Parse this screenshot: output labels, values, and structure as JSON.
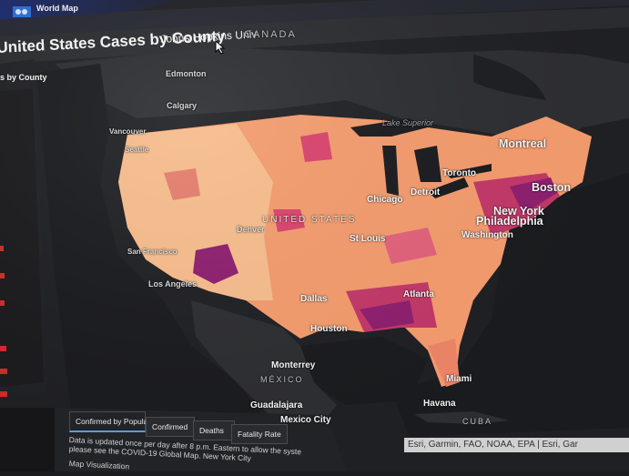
{
  "header": {
    "app_title": "World Map",
    "map_title": "United States Cases by County",
    "source": "Johns Hopkins Univ"
  },
  "side_panel": {
    "title": "s by County"
  },
  "map_labels": {
    "countries": [
      "CANADA",
      "UNITED STATES",
      "MÉXICO",
      "CUBA"
    ],
    "water": [
      "Lake Superior"
    ],
    "cities": [
      "Edmonton",
      "Calgary",
      "Vancouver",
      "Seattle",
      "Denver",
      "Los Angeles",
      "San Francisco",
      "Dallas",
      "Houston",
      "Monterrey",
      "Guadalajara",
      "Mexico City",
      "St Louis",
      "Chicago",
      "Detroit",
      "Toronto",
      "Montreal",
      "Boston",
      "New York",
      "Philadelphia",
      "Washington",
      "Atlanta",
      "Miami",
      "Havana"
    ]
  },
  "tabs": [
    {
      "label": "Confirmed by Population",
      "active": true
    },
    {
      "label": "Confirmed",
      "active": false
    },
    {
      "label": "Deaths",
      "active": false
    },
    {
      "label": "Fatality Rate",
      "active": false
    }
  ],
  "footer": {
    "line1": "Data is updated once per day after 8 p.m. Eastern to allow the syste",
    "line2": "please see the COVID-19 Global Map. New York City",
    "line3": "Map Visualization"
  },
  "attribution": "Esri, Garmin, FAO, NOAA, EPA | Esri, Gar",
  "colors": {
    "background": "#1b1c1f",
    "land": "#2c2d30",
    "low": "#f8d7a6",
    "mid": "#f39b6d",
    "high": "#d8436c",
    "very_high": "#8d1f6e",
    "accent": "#4ea0e6"
  }
}
